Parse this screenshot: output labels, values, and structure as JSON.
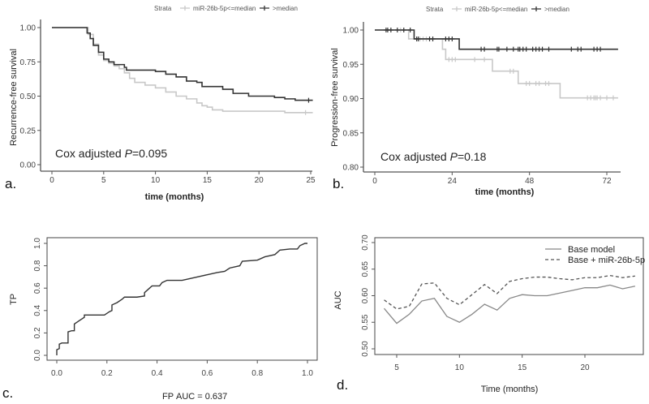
{
  "chart_data": [
    {
      "id": "a",
      "panel_label": "a.",
      "type": "line",
      "subtype": "kaplan-meier",
      "xlabel": "time (months)",
      "ylabel": "Recurrence-free survival",
      "xlim": [
        0,
        25
      ],
      "ylim": [
        0,
        1
      ],
      "xticks": [
        0,
        5,
        10,
        15,
        20,
        25
      ],
      "yticks": [
        "0.00",
        "0.25",
        "0.50",
        "0.75",
        "1.00"
      ],
      "legend": {
        "title": "Strata",
        "position": "top",
        "entries": [
          "miR-26b-5p<=median",
          ">median"
        ]
      },
      "annotation": {
        "prefix": "Cox adjusted ",
        "italic": "P",
        "suffix": "=0.095"
      },
      "series": [
        {
          "name": "miR-26b-5p<=median",
          "color": "#c8c8c8",
          "steps": [
            [
              0,
              1
            ],
            [
              3.2,
              1
            ],
            [
              3.5,
              0.95
            ],
            [
              4,
              0.88
            ],
            [
              4.5,
              0.8
            ],
            [
              5,
              0.76
            ],
            [
              5.5,
              0.74
            ],
            [
              6,
              0.72
            ],
            [
              6.5,
              0.7
            ],
            [
              7,
              0.67
            ],
            [
              7.5,
              0.63
            ],
            [
              8,
              0.6
            ],
            [
              9,
              0.58
            ],
            [
              10,
              0.56
            ],
            [
              11,
              0.53
            ],
            [
              12,
              0.5
            ],
            [
              13,
              0.48
            ],
            [
              14,
              0.45
            ],
            [
              14.5,
              0.43
            ],
            [
              15,
              0.42
            ],
            [
              15.5,
              0.4
            ],
            [
              16.5,
              0.39
            ],
            [
              22.5,
              0.38
            ],
            [
              25.2,
              0.38
            ]
          ],
          "censors": [
            24.5
          ]
        },
        {
          "name": ">median",
          "color": "#333333",
          "steps": [
            [
              0,
              1
            ],
            [
              3.2,
              1
            ],
            [
              3.4,
              0.96
            ],
            [
              3.7,
              0.92
            ],
            [
              4,
              0.87
            ],
            [
              4.5,
              0.82
            ],
            [
              5,
              0.77
            ],
            [
              5.5,
              0.75
            ],
            [
              6,
              0.73
            ],
            [
              7,
              0.71
            ],
            [
              7.2,
              0.69
            ],
            [
              10,
              0.68
            ],
            [
              11,
              0.66
            ],
            [
              12,
              0.64
            ],
            [
              13,
              0.61
            ],
            [
              14,
              0.6
            ],
            [
              14.5,
              0.57
            ],
            [
              16.5,
              0.55
            ],
            [
              17.5,
              0.52
            ],
            [
              19,
              0.5
            ],
            [
              21.5,
              0.49
            ],
            [
              22.5,
              0.48
            ],
            [
              23.5,
              0.47
            ],
            [
              25.2,
              0.47
            ]
          ],
          "censors": [
            24.8
          ]
        }
      ]
    },
    {
      "id": "b",
      "panel_label": "b.",
      "type": "line",
      "subtype": "kaplan-meier",
      "xlabel": "time (months)",
      "ylabel": "Progression-free survival",
      "xlim": [
        0,
        75.5
      ],
      "ylim": [
        0.8,
        1
      ],
      "xticks": [
        0,
        24,
        48,
        72
      ],
      "yticks": [
        "0.80",
        "0.85",
        "0.90",
        "0.95",
        "1.00"
      ],
      "legend": {
        "title": "Strata",
        "position": "top",
        "entries": [
          "miR-26b-5p<=median",
          ">median"
        ]
      },
      "annotation": {
        "prefix": "Cox adjusted ",
        "italic": "P",
        "suffix": "=0.18"
      },
      "series": [
        {
          "name": "miR-26b-5p<=median",
          "color": "#c8c8c8",
          "steps": [
            [
              0,
              1
            ],
            [
              10,
              1
            ],
            [
              10.5,
              0.987
            ],
            [
              20,
              0.987
            ],
            [
              21,
              0.972
            ],
            [
              22,
              0.957
            ],
            [
              36,
              0.957
            ],
            [
              36.5,
              0.94
            ],
            [
              44,
              0.94
            ],
            [
              44.5,
              0.922
            ],
            [
              57,
              0.922
            ],
            [
              57.5,
              0.901
            ],
            [
              75.5,
              0.901
            ]
          ],
          "censors": [
            8,
            14,
            15,
            16,
            18,
            23,
            24,
            25,
            31,
            34,
            42,
            43,
            47,
            48,
            50,
            51,
            53,
            54,
            66,
            67,
            68,
            68.5,
            69,
            70,
            72,
            74
          ]
        },
        {
          "name": ">median",
          "color": "#333333",
          "steps": [
            [
              0,
              1
            ],
            [
              12,
              1
            ],
            [
              12.2,
              0.987
            ],
            [
              26,
              0.987
            ],
            [
              26.2,
              0.972
            ],
            [
              75.5,
              0.972
            ]
          ],
          "censors": [
            3.5,
            4,
            5,
            7,
            9,
            11,
            13,
            13.5,
            17,
            18,
            22,
            23,
            24,
            33,
            34,
            38,
            38.5,
            41,
            43,
            44.5,
            45,
            46,
            47,
            49,
            50,
            51,
            52,
            54,
            61,
            63,
            64,
            68,
            69,
            70
          ]
        }
      ]
    },
    {
      "id": "c",
      "panel_label": "c.",
      "type": "line",
      "subtype": "roc",
      "xlabel": "FP",
      "ylabel": "TP",
      "auc_label": "AUC =  0.637",
      "xlim": [
        0,
        1
      ],
      "ylim": [
        0,
        1
      ],
      "xticks": [
        "0.0",
        "0.2",
        "0.4",
        "0.6",
        "0.8",
        "1.0"
      ],
      "yticks": [
        "0.0",
        "0.2",
        "0.4",
        "0.6",
        "0.8",
        "1.0"
      ],
      "series": [
        {
          "name": "ROC",
          "color": "#333333",
          "points": [
            [
              0,
              0
            ],
            [
              0,
              0.05
            ],
            [
              0.01,
              0.06
            ],
            [
              0.01,
              0.1
            ],
            [
              0.02,
              0.11
            ],
            [
              0.045,
              0.11
            ],
            [
              0.045,
              0.21
            ],
            [
              0.06,
              0.22
            ],
            [
              0.07,
              0.22
            ],
            [
              0.07,
              0.28
            ],
            [
              0.09,
              0.31
            ],
            [
              0.11,
              0.34
            ],
            [
              0.11,
              0.36
            ],
            [
              0.19,
              0.36
            ],
            [
              0.21,
              0.39
            ],
            [
              0.22,
              0.4
            ],
            [
              0.22,
              0.45
            ],
            [
              0.24,
              0.47
            ],
            [
              0.26,
              0.5
            ],
            [
              0.27,
              0.52
            ],
            [
              0.32,
              0.52
            ],
            [
              0.35,
              0.53
            ],
            [
              0.35,
              0.56
            ],
            [
              0.37,
              0.6
            ],
            [
              0.38,
              0.62
            ],
            [
              0.41,
              0.62
            ],
            [
              0.42,
              0.65
            ],
            [
              0.44,
              0.67
            ],
            [
              0.5,
              0.67
            ],
            [
              0.52,
              0.68
            ],
            [
              0.56,
              0.7
            ],
            [
              0.6,
              0.72
            ],
            [
              0.64,
              0.74
            ],
            [
              0.67,
              0.75
            ],
            [
              0.69,
              0.78
            ],
            [
              0.73,
              0.8
            ],
            [
              0.74,
              0.84
            ],
            [
              0.8,
              0.85
            ],
            [
              0.83,
              0.88
            ],
            [
              0.87,
              0.9
            ],
            [
              0.89,
              0.94
            ],
            [
              0.93,
              0.95
            ],
            [
              0.96,
              0.95
            ],
            [
              0.97,
              0.98
            ],
            [
              0.99,
              1
            ],
            [
              1,
              1
            ]
          ]
        }
      ]
    },
    {
      "id": "d",
      "panel_label": "d.",
      "type": "line",
      "xlabel": "Time (months)",
      "ylabel": "AUC",
      "xlim": [
        3.2,
        24.6
      ],
      "ylim": [
        0.5,
        0.7
      ],
      "xticks": [
        5,
        10,
        15,
        20
      ],
      "yticks": [
        "0.50",
        "0.55",
        "0.60",
        "0.65",
        "0.70"
      ],
      "legend": {
        "position": "top-right",
        "entries": [
          "Base model",
          "Base + miR-26b-5p"
        ]
      },
      "x": [
        4,
        5,
        6,
        7,
        8,
        9,
        10,
        11,
        12,
        13,
        14,
        15,
        16,
        17,
        18,
        19,
        20,
        21,
        22,
        23,
        24
      ],
      "series": [
        {
          "name": "Base model",
          "color": "#888888",
          "dash": false,
          "values": [
            0.576,
            0.548,
            0.565,
            0.59,
            0.595,
            0.561,
            0.55,
            0.565,
            0.584,
            0.573,
            0.595,
            0.602,
            0.6,
            0.6,
            0.605,
            0.61,
            0.615,
            0.615,
            0.62,
            0.613,
            0.618
          ]
        },
        {
          "name": "Base + miR-26b-5p",
          "color": "#555555",
          "dash": true,
          "values": [
            0.592,
            0.575,
            0.58,
            0.622,
            0.624,
            0.595,
            0.583,
            0.602,
            0.621,
            0.604,
            0.627,
            0.632,
            0.635,
            0.635,
            0.632,
            0.63,
            0.634,
            0.634,
            0.638,
            0.634,
            0.637
          ]
        }
      ]
    }
  ]
}
